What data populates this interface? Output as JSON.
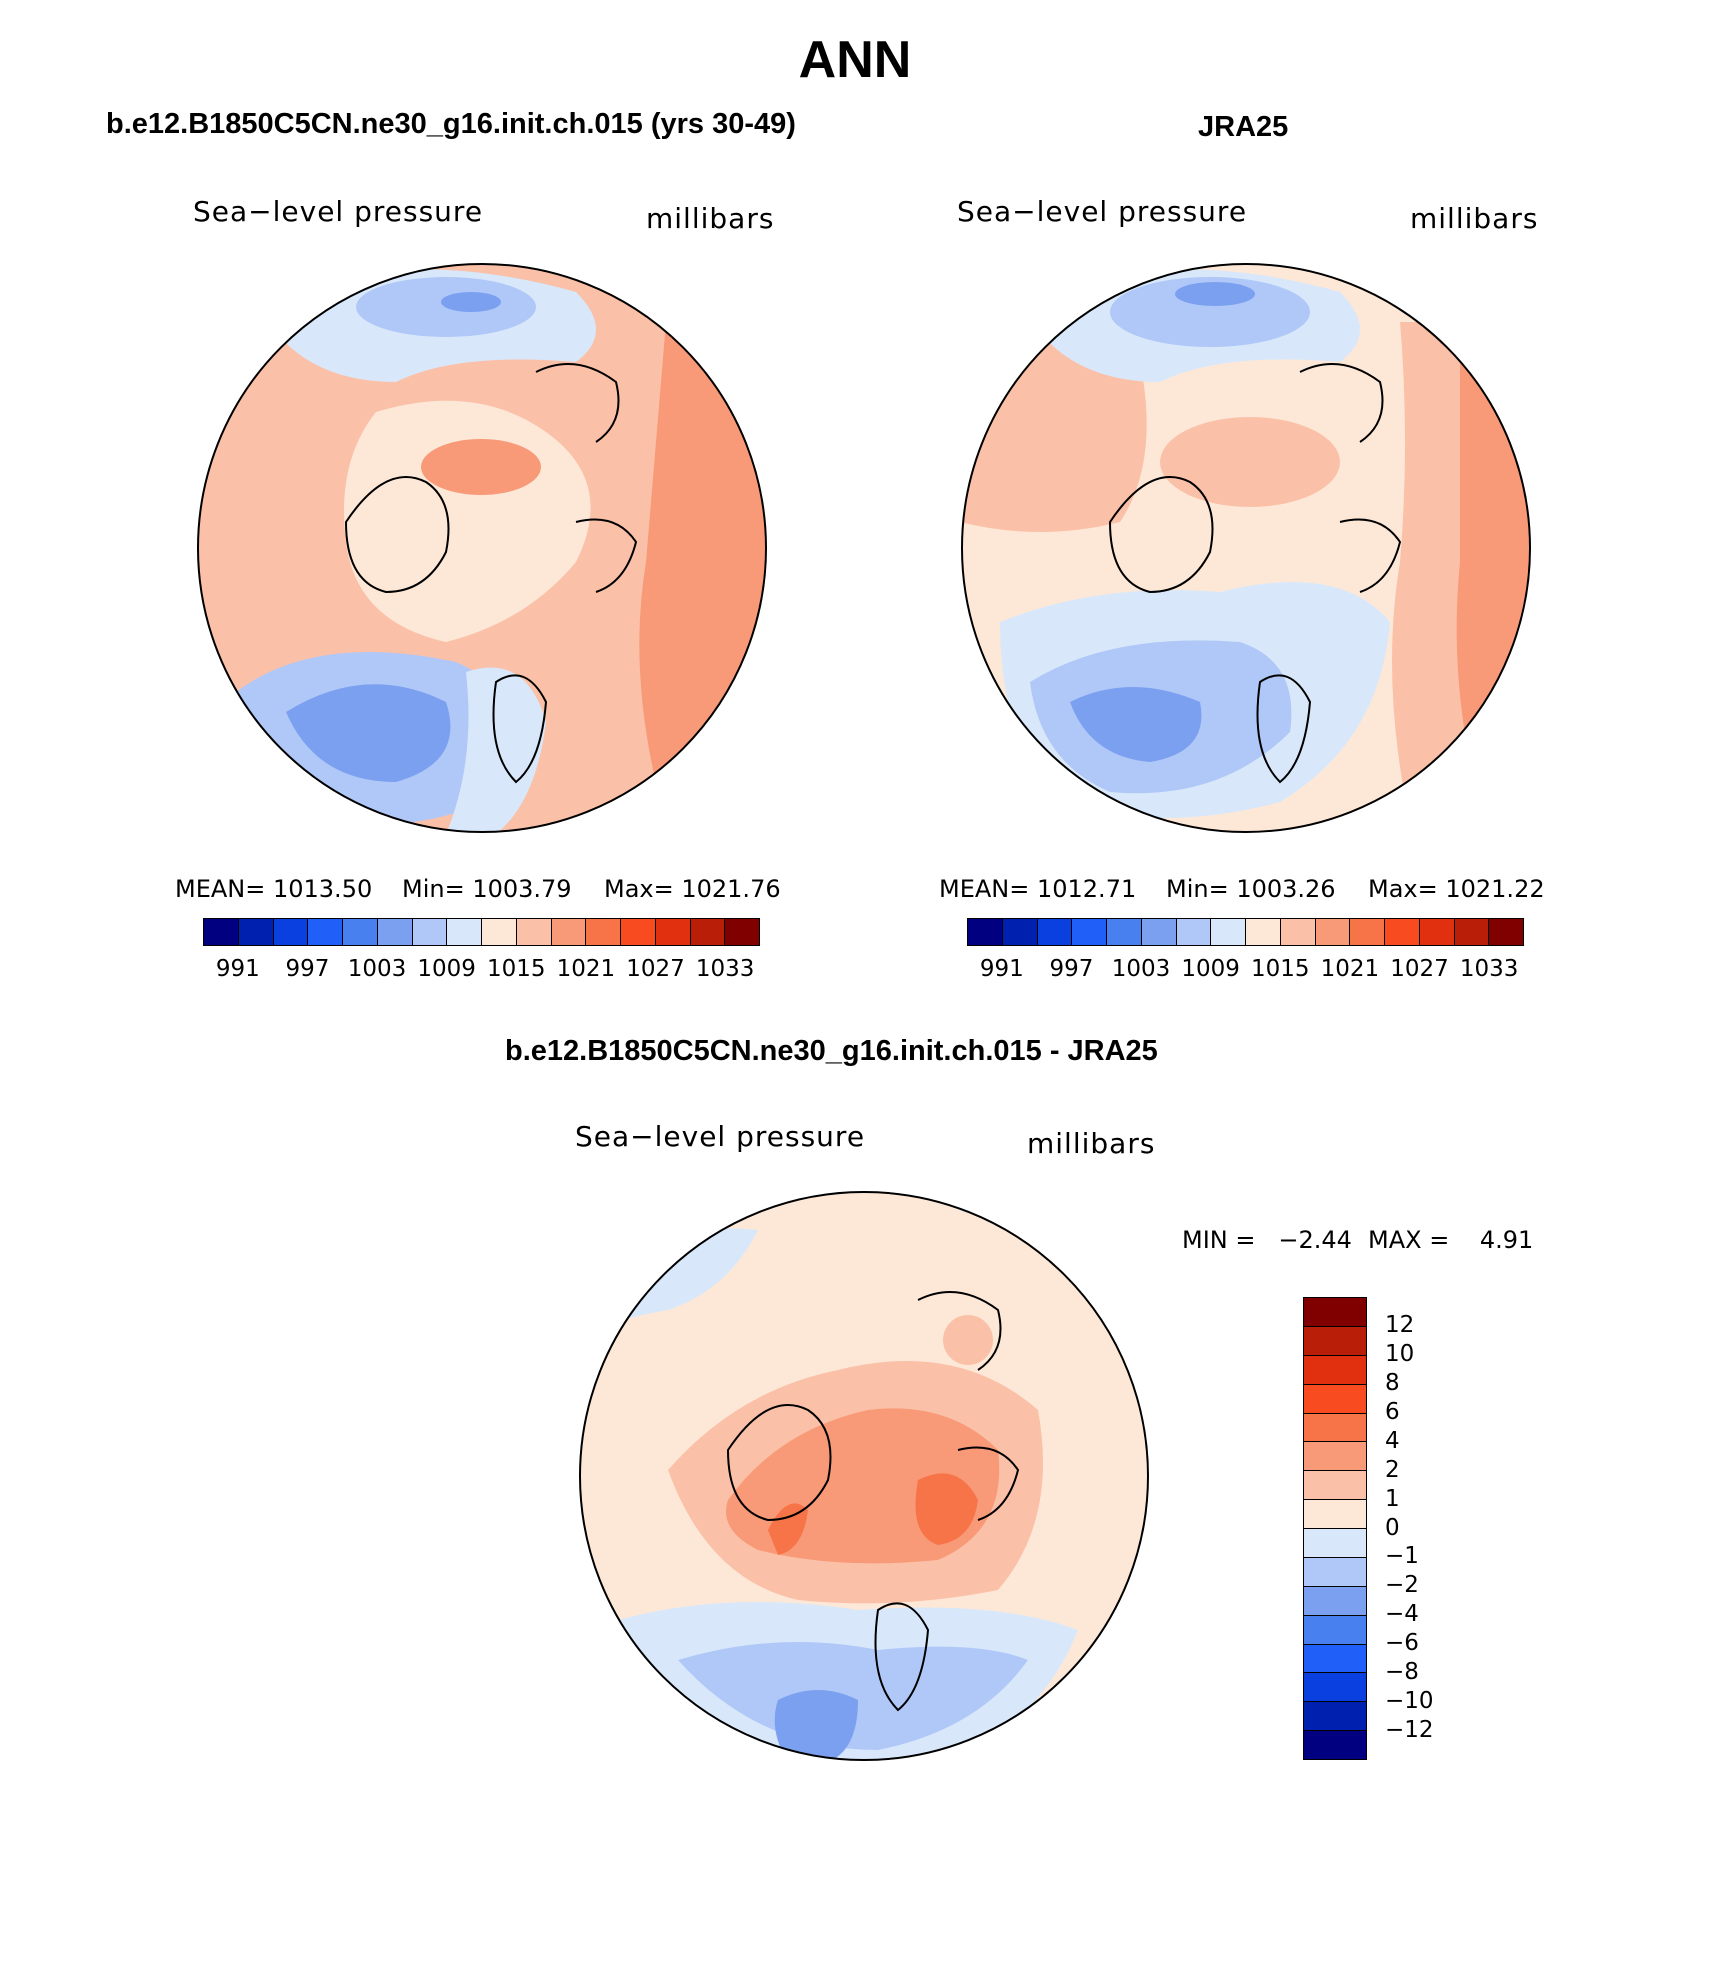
{
  "page_title": "ANN",
  "panels": {
    "left": {
      "header": "b.e12.B1850C5CN.ne30_g16.init.ch.015 (yrs 30-49)",
      "variable": "Sea−level pressure",
      "units": "millibars",
      "stats": {
        "mean": "MEAN= 1013.50",
        "min": "Min= 1003.79",
        "max": "Max= 1021.76"
      }
    },
    "right": {
      "header": "JRA25",
      "variable": "Sea−level pressure",
      "units": "millibars",
      "stats": {
        "mean": "MEAN= 1012.71",
        "min": "Min= 1003.26",
        "max": "Max= 1021.22"
      }
    },
    "diff": {
      "header": "b.e12.B1850C5CN.ne30_g16.init.ch.015 - JRA25",
      "variable": "Sea−level pressure",
      "units": "millibars",
      "minmax": {
        "min": "MIN =   −2.44",
        "max": "MAX =    4.91"
      }
    }
  },
  "abs_colorbar": {
    "colors": [
      "#000080",
      "#0020b0",
      "#0a40e0",
      "#2060f8",
      "#4880f0",
      "#7ca0f0",
      "#b0c8f8",
      "#d8e8fa",
      "#fde8d8",
      "#fbc0a8",
      "#f89a78",
      "#f77448",
      "#f84c20",
      "#e03010",
      "#b81e08",
      "#800000"
    ],
    "labels": [
      "991",
      "997",
      "1003",
      "1009",
      "1015",
      "1021",
      "1027",
      "1033"
    ]
  },
  "diff_colorbar": {
    "colors": [
      "#800000",
      "#b81e08",
      "#e03010",
      "#f84c20",
      "#f77448",
      "#f89a78",
      "#fbc0a8",
      "#fde8d8",
      "#d8e8fa",
      "#b0c8f8",
      "#7ca0f0",
      "#4880f0",
      "#2060f8",
      "#0a40e0",
      "#0020b0",
      "#000080"
    ],
    "labels": [
      "12",
      "10",
      "8",
      "6",
      "4",
      "2",
      "1",
      "0",
      "−1",
      "−2",
      "−4",
      "−6",
      "−8",
      "−10",
      "−12"
    ]
  }
}
